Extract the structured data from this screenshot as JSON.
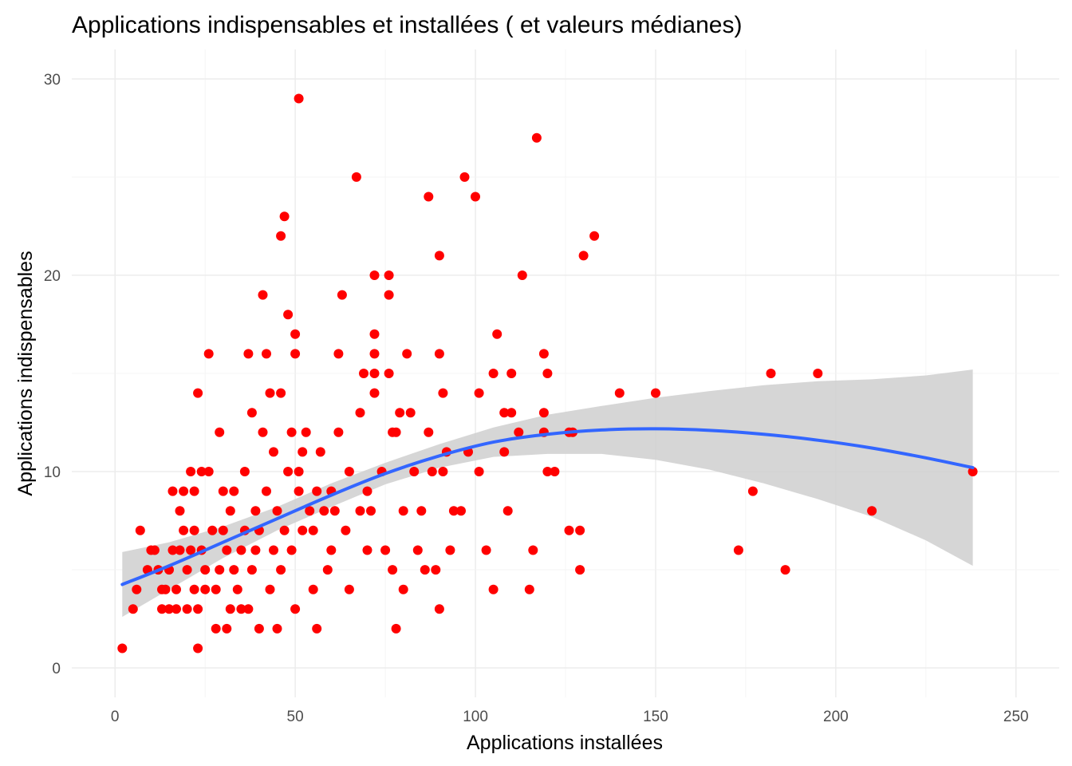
{
  "colors": {
    "points": "#ff0000",
    "smooth_line": "#3366ff",
    "ribbon": "#cfcfcf",
    "grid": "#ebebeb"
  },
  "chart_data": {
    "type": "scatter",
    "title": "Applications indispensables et installées ( et valeurs médianes)",
    "xlabel": "Applications installées",
    "ylabel": "Applications indispensables",
    "xlim": [
      -12,
      262
    ],
    "ylim": [
      -1.5,
      31.5
    ],
    "x_ticks": [
      0,
      50,
      100,
      150,
      200,
      250
    ],
    "y_ticks": [
      0,
      10,
      20,
      30
    ],
    "x_tick_labels": [
      "0",
      "50",
      "100",
      "150",
      "200",
      "250"
    ],
    "y_tick_labels": [
      "0",
      "10",
      "20",
      "30"
    ],
    "grid": true,
    "legend": "none",
    "points": [
      [
        2,
        1
      ],
      [
        5,
        3
      ],
      [
        6,
        4
      ],
      [
        7,
        7
      ],
      [
        9,
        5
      ],
      [
        10,
        6
      ],
      [
        11,
        6
      ],
      [
        12,
        5
      ],
      [
        13,
        3
      ],
      [
        13,
        4
      ],
      [
        14,
        4
      ],
      [
        15,
        5
      ],
      [
        15,
        3
      ],
      [
        16,
        6
      ],
      [
        16,
        9
      ],
      [
        17,
        4
      ],
      [
        17,
        3
      ],
      [
        18,
        8
      ],
      [
        18,
        6
      ],
      [
        19,
        9
      ],
      [
        19,
        7
      ],
      [
        20,
        5
      ],
      [
        20,
        3
      ],
      [
        21,
        10
      ],
      [
        21,
        6
      ],
      [
        22,
        7
      ],
      [
        22,
        4
      ],
      [
        22,
        9
      ],
      [
        23,
        1
      ],
      [
        23,
        14
      ],
      [
        23,
        3
      ],
      [
        24,
        6
      ],
      [
        24,
        10
      ],
      [
        25,
        5
      ],
      [
        25,
        4
      ],
      [
        26,
        16
      ],
      [
        26,
        10
      ],
      [
        27,
        7
      ],
      [
        28,
        2
      ],
      [
        28,
        4
      ],
      [
        29,
        12
      ],
      [
        29,
        5
      ],
      [
        30,
        9
      ],
      [
        30,
        7
      ],
      [
        31,
        6
      ],
      [
        31,
        2
      ],
      [
        32,
        8
      ],
      [
        32,
        3
      ],
      [
        33,
        5
      ],
      [
        33,
        9
      ],
      [
        34,
        4
      ],
      [
        35,
        6
      ],
      [
        35,
        3
      ],
      [
        36,
        10
      ],
      [
        36,
        7
      ],
      [
        37,
        3
      ],
      [
        37,
        16
      ],
      [
        38,
        13
      ],
      [
        38,
        5
      ],
      [
        39,
        8
      ],
      [
        39,
        6
      ],
      [
        40,
        7
      ],
      [
        40,
        2
      ],
      [
        41,
        12
      ],
      [
        41,
        19
      ],
      [
        42,
        16
      ],
      [
        42,
        9
      ],
      [
        43,
        14
      ],
      [
        43,
        4
      ],
      [
        44,
        11
      ],
      [
        44,
        6
      ],
      [
        45,
        2
      ],
      [
        45,
        8
      ],
      [
        46,
        22
      ],
      [
        46,
        14
      ],
      [
        46,
        5
      ],
      [
        47,
        23
      ],
      [
        47,
        7
      ],
      [
        48,
        18
      ],
      [
        48,
        10
      ],
      [
        49,
        12
      ],
      [
        49,
        6
      ],
      [
        50,
        17
      ],
      [
        50,
        16
      ],
      [
        50,
        3
      ],
      [
        51,
        29
      ],
      [
        51,
        10
      ],
      [
        51,
        9
      ],
      [
        52,
        11
      ],
      [
        52,
        7
      ],
      [
        53,
        12
      ],
      [
        54,
        8
      ],
      [
        55,
        7
      ],
      [
        55,
        4
      ],
      [
        56,
        9
      ],
      [
        56,
        2
      ],
      [
        57,
        11
      ],
      [
        58,
        8
      ],
      [
        59,
        5
      ],
      [
        60,
        9
      ],
      [
        60,
        6
      ],
      [
        61,
        8
      ],
      [
        62,
        12
      ],
      [
        62,
        16
      ],
      [
        63,
        19
      ],
      [
        64,
        7
      ],
      [
        65,
        4
      ],
      [
        65,
        10
      ],
      [
        67,
        25
      ],
      [
        68,
        13
      ],
      [
        68,
        8
      ],
      [
        69,
        15
      ],
      [
        70,
        6
      ],
      [
        70,
        9
      ],
      [
        71,
        8
      ],
      [
        72,
        20
      ],
      [
        72,
        17
      ],
      [
        72,
        16
      ],
      [
        72,
        14
      ],
      [
        72,
        15
      ],
      [
        74,
        10
      ],
      [
        75,
        6
      ],
      [
        76,
        20
      ],
      [
        76,
        19
      ],
      [
        76,
        15
      ],
      [
        77,
        12
      ],
      [
        77,
        5
      ],
      [
        78,
        12
      ],
      [
        78,
        2
      ],
      [
        79,
        13
      ],
      [
        80,
        8
      ],
      [
        80,
        4
      ],
      [
        81,
        16
      ],
      [
        82,
        13
      ],
      [
        83,
        10
      ],
      [
        84,
        6
      ],
      [
        85,
        8
      ],
      [
        86,
        5
      ],
      [
        87,
        24
      ],
      [
        87,
        12
      ],
      [
        88,
        10
      ],
      [
        89,
        5
      ],
      [
        90,
        21
      ],
      [
        90,
        16
      ],
      [
        90,
        3
      ],
      [
        91,
        14
      ],
      [
        91,
        10
      ],
      [
        92,
        11
      ],
      [
        93,
        6
      ],
      [
        94,
        8
      ],
      [
        96,
        8
      ],
      [
        97,
        25
      ],
      [
        98,
        11
      ],
      [
        100,
        24
      ],
      [
        101,
        14
      ],
      [
        101,
        10
      ],
      [
        103,
        6
      ],
      [
        105,
        4
      ],
      [
        105,
        15
      ],
      [
        106,
        17
      ],
      [
        108,
        13
      ],
      [
        108,
        11
      ],
      [
        109,
        8
      ],
      [
        110,
        15
      ],
      [
        110,
        13
      ],
      [
        112,
        12
      ],
      [
        113,
        20
      ],
      [
        115,
        4
      ],
      [
        116,
        6
      ],
      [
        117,
        27
      ],
      [
        119,
        16
      ],
      [
        119,
        13
      ],
      [
        119,
        12
      ],
      [
        120,
        15
      ],
      [
        120,
        10
      ],
      [
        122,
        10
      ],
      [
        126,
        12
      ],
      [
        126,
        7
      ],
      [
        127,
        12
      ],
      [
        129,
        7
      ],
      [
        129,
        5
      ],
      [
        130,
        21
      ],
      [
        133,
        22
      ],
      [
        140,
        14
      ],
      [
        150,
        14
      ],
      [
        173,
        6
      ],
      [
        177,
        9
      ],
      [
        182,
        15
      ],
      [
        186,
        5
      ],
      [
        195,
        15
      ],
      [
        210,
        8
      ],
      [
        238,
        10
      ]
    ],
    "smooth": {
      "x": [
        2,
        15,
        30,
        45,
        60,
        75,
        90,
        105,
        120,
        135,
        150,
        165,
        180,
        195,
        210,
        225,
        238
      ],
      "y": [
        4.25,
        5.2,
        6.4,
        7.6,
        8.8,
        9.9,
        10.8,
        11.5,
        11.9,
        12.12,
        12.18,
        12.1,
        11.9,
        11.6,
        11.2,
        10.7,
        10.2
      ],
      "lower": [
        2.6,
        4.0,
        5.6,
        7.0,
        8.2,
        9.35,
        10.2,
        10.75,
        10.9,
        10.9,
        10.6,
        10.1,
        9.4,
        8.6,
        7.7,
        6.5,
        5.2
      ],
      "upper": [
        5.9,
        6.4,
        7.2,
        8.2,
        9.4,
        10.45,
        11.4,
        12.25,
        12.9,
        13.34,
        13.76,
        14.1,
        14.4,
        14.6,
        14.7,
        14.9,
        15.2
      ]
    }
  }
}
